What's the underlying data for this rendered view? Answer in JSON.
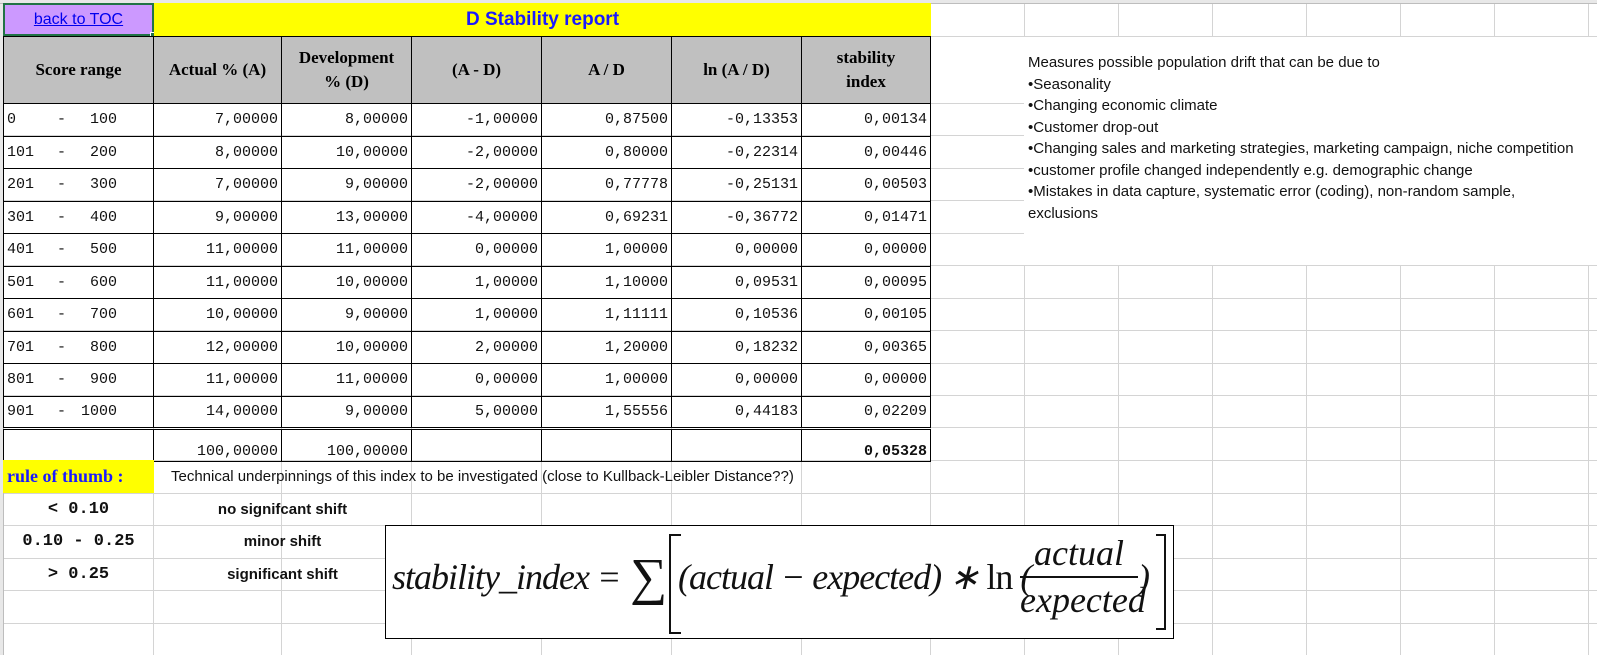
{
  "toc_link": {
    "label": "back to TOC"
  },
  "report": {
    "title": "D Stability report",
    "columns": [
      "Score range",
      "Actual % (A)",
      "Development % (D)",
      "(A - D)",
      "A / D",
      "ln (A / D)",
      "stability index"
    ],
    "header_lines": {
      "development": [
        "Development",
        "% (D)"
      ],
      "stability": [
        "stability",
        "index"
      ]
    },
    "rows": [
      {
        "range_from": "0",
        "range_to": "100",
        "actual": "7,00000",
        "development": "8,00000",
        "diff": "-1,00000",
        "ratio": "0,87500",
        "ln_ratio": "-0,13353",
        "stability_index": "0,00134"
      },
      {
        "range_from": "101",
        "range_to": "200",
        "actual": "8,00000",
        "development": "10,00000",
        "diff": "-2,00000",
        "ratio": "0,80000",
        "ln_ratio": "-0,22314",
        "stability_index": "0,00446"
      },
      {
        "range_from": "201",
        "range_to": "300",
        "actual": "7,00000",
        "development": "9,00000",
        "diff": "-2,00000",
        "ratio": "0,77778",
        "ln_ratio": "-0,25131",
        "stability_index": "0,00503"
      },
      {
        "range_from": "301",
        "range_to": "400",
        "actual": "9,00000",
        "development": "13,00000",
        "diff": "-4,00000",
        "ratio": "0,69231",
        "ln_ratio": "-0,36772",
        "stability_index": "0,01471"
      },
      {
        "range_from": "401",
        "range_to": "500",
        "actual": "11,00000",
        "development": "11,00000",
        "diff": "0,00000",
        "ratio": "1,00000",
        "ln_ratio": "0,00000",
        "stability_index": "0,00000"
      },
      {
        "range_from": "501",
        "range_to": "600",
        "actual": "11,00000",
        "development": "10,00000",
        "diff": "1,00000",
        "ratio": "1,10000",
        "ln_ratio": "0,09531",
        "stability_index": "0,00095"
      },
      {
        "range_from": "601",
        "range_to": "700",
        "actual": "10,00000",
        "development": "9,00000",
        "diff": "1,00000",
        "ratio": "1,11111",
        "ln_ratio": "0,10536",
        "stability_index": "0,00105"
      },
      {
        "range_from": "701",
        "range_to": "800",
        "actual": "12,00000",
        "development": "10,00000",
        "diff": "2,00000",
        "ratio": "1,20000",
        "ln_ratio": "0,18232",
        "stability_index": "0,00365"
      },
      {
        "range_from": "801",
        "range_to": "900",
        "actual": "11,00000",
        "development": "11,00000",
        "diff": "0,00000",
        "ratio": "1,00000",
        "ln_ratio": "0,00000",
        "stability_index": "0,00000"
      },
      {
        "range_from": "901",
        "range_to": "1000",
        "actual": "14,00000",
        "development": "9,00000",
        "diff": "5,00000",
        "ratio": "1,55556",
        "ln_ratio": "0,44183",
        "stability_index": "0,02209"
      }
    ],
    "totals": {
      "actual": "100,00000",
      "development": "100,00000",
      "stability_index": "0,05328"
    }
  },
  "rule_of_thumb": {
    "label": "rule of thumb :",
    "note": "Technical underpinnings of this index to be investigated (close to Kullback-Leibler Distance??)",
    "thresholds": [
      {
        "range": "< 0.10",
        "meaning": "no signifcant shift"
      },
      {
        "range": "0.10 - 0.25",
        "meaning": "minor shift"
      },
      {
        "range": "> 0.25",
        "meaning": "significant shift"
      }
    ]
  },
  "formula": {
    "lhs": "stability_index =",
    "sigma": "∑",
    "middle_pre": "(actual − expected) ∗ ",
    "ln": "ln",
    "open_paren": " (",
    "numerator": "actual",
    "denominator": "expected",
    "close_paren": ")"
  },
  "description": {
    "intro": "Measures possible population drift that can be due to",
    "items": [
      "Seasonality",
      "Changing economic climate",
      "Customer drop-out",
      "Changing sales and marketing strategies, marketing campaign, niche competition",
      "customer profile changed independently e.g. demographic change",
      "Mistakes in data capture, systematic error (coding), non-random sample, exclusions"
    ]
  },
  "colors": {
    "title_bg": "#ffff00",
    "title_text": "#1a1aff",
    "toc_bg": "#cc99ff",
    "header_bg": "#c0c0c0",
    "selection_border": "#217346",
    "total_text": "#1a1aff"
  }
}
